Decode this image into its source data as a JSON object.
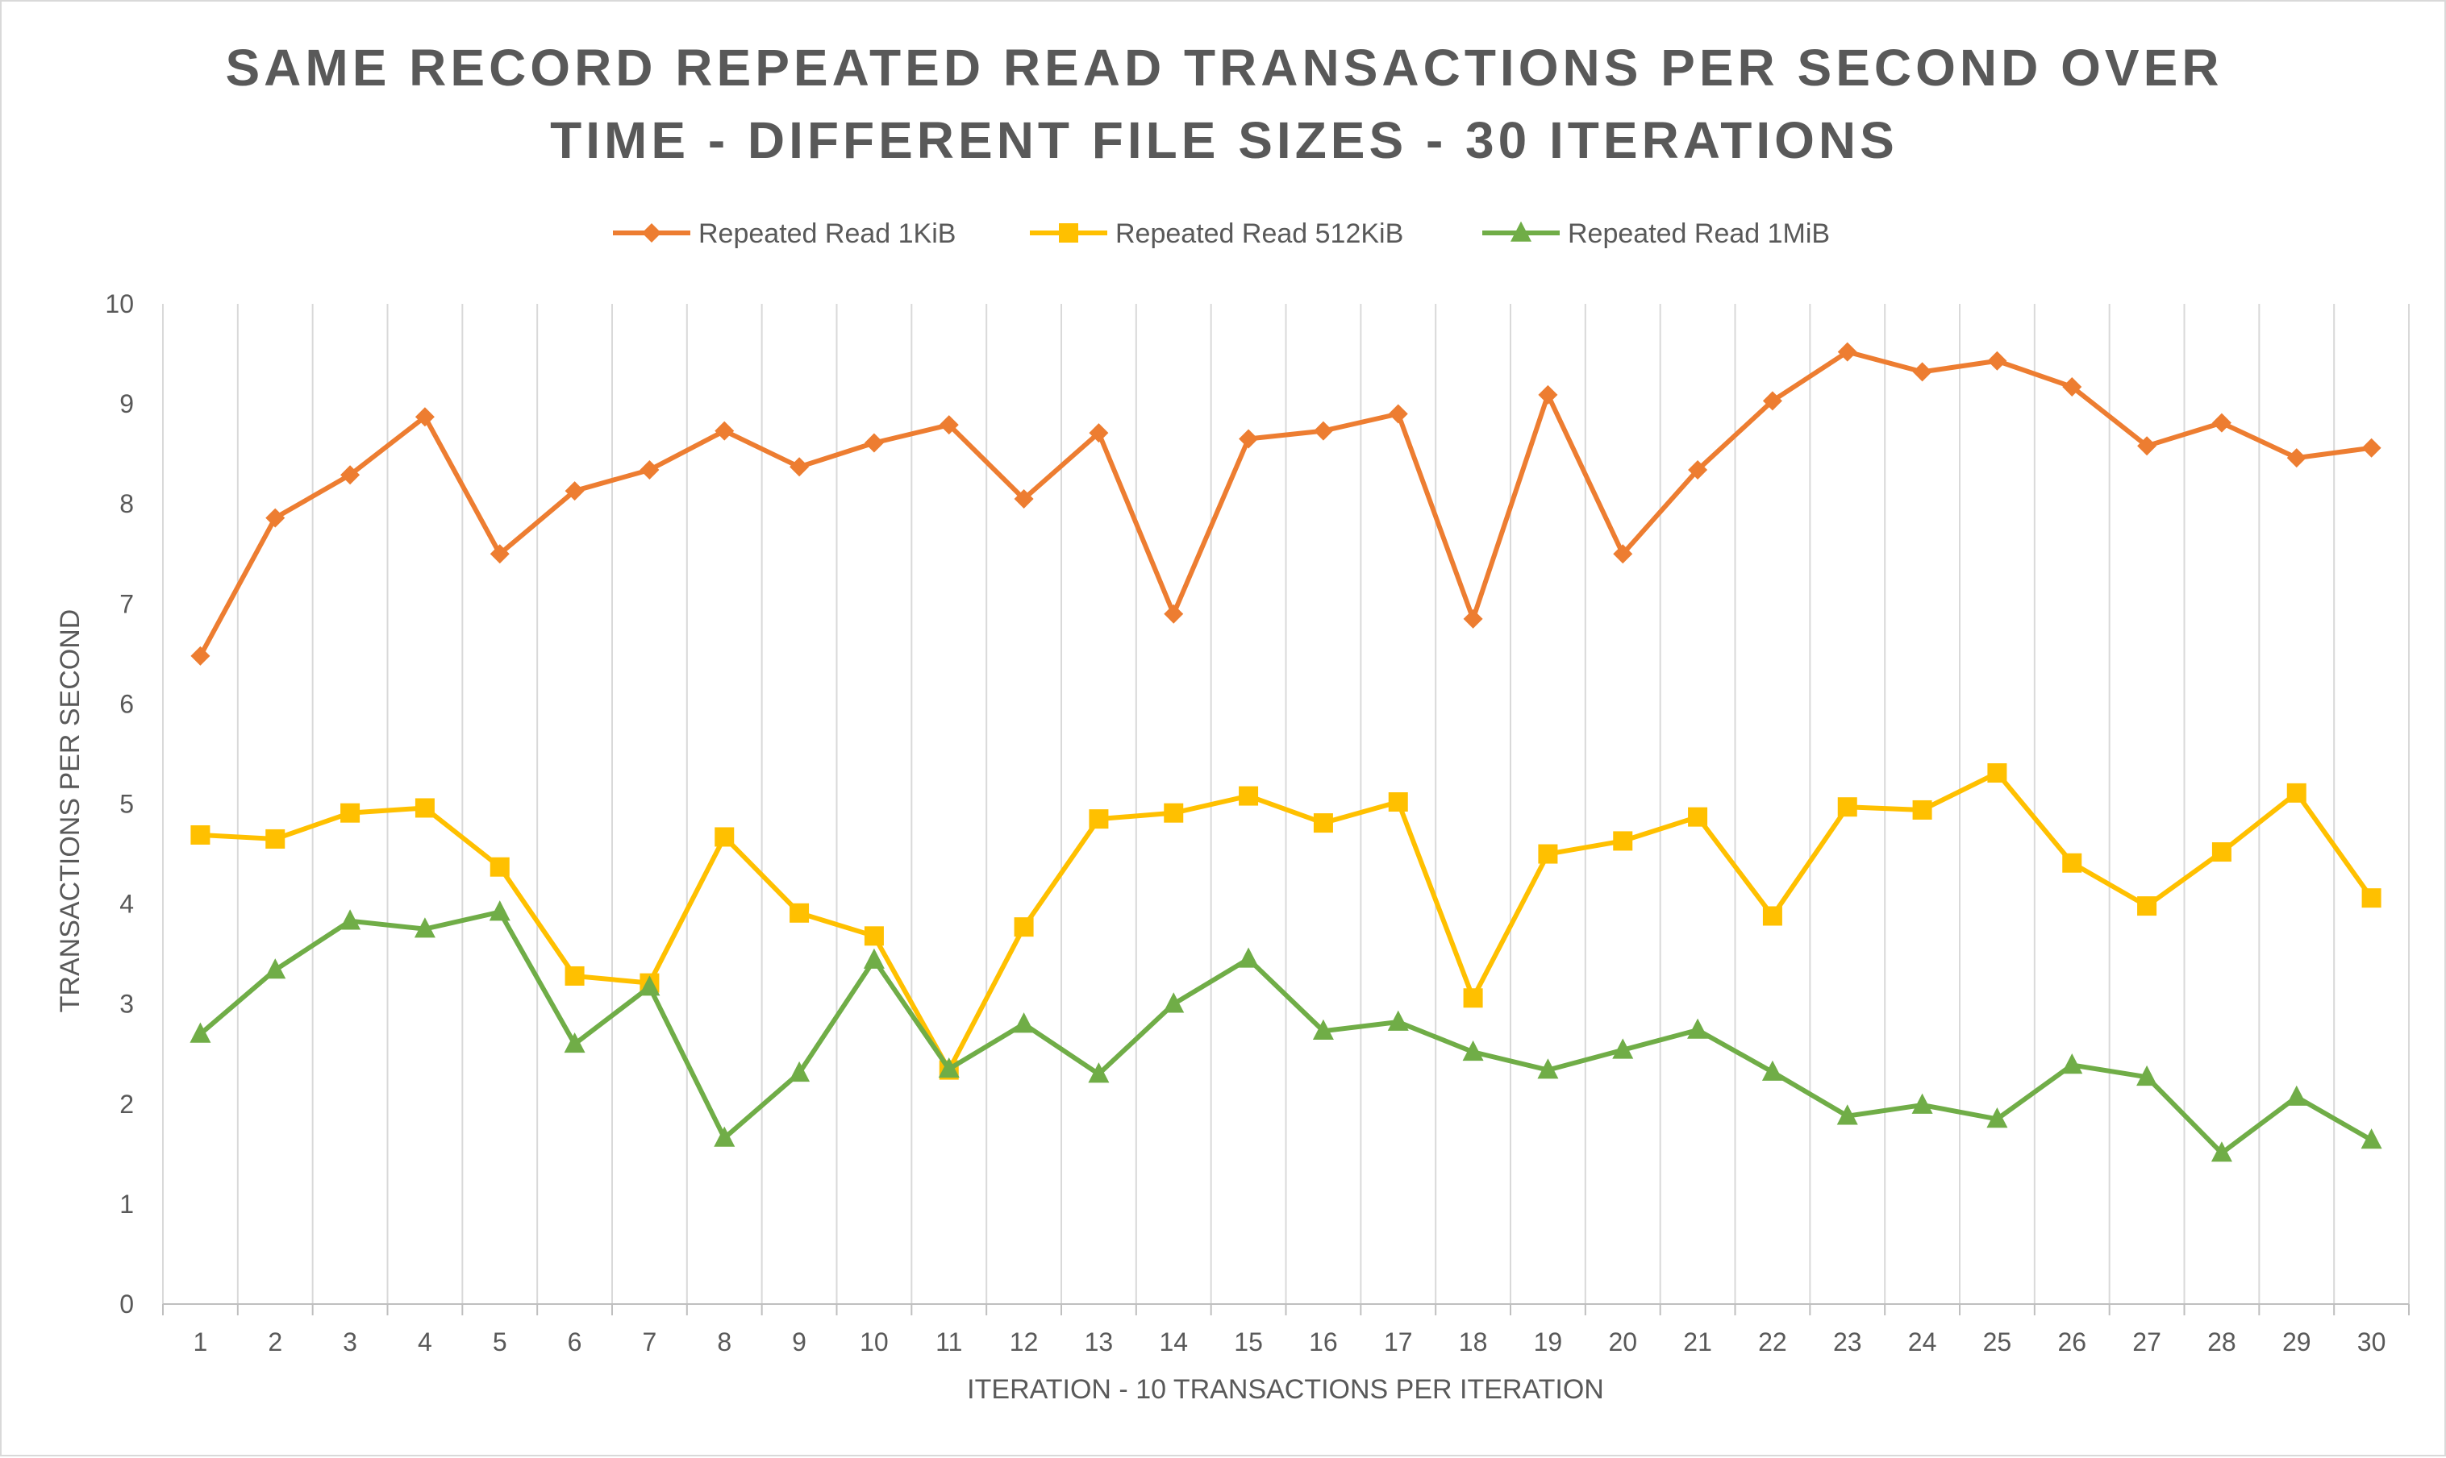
{
  "chart_data": {
    "type": "line",
    "title_lines": [
      "SAME RECORD REPEATED READ TRANSACTIONS PER SECOND OVER",
      "TIME - DIFFERENT FILE SIZES - 30 ITERATIONS"
    ],
    "xlabel": "ITERATION - 10 TRANSACTIONS PER ITERATION",
    "ylabel": "TRANSACTIONS PER SECOND",
    "ylim": [
      0,
      10
    ],
    "yticks": [
      0,
      1,
      2,
      3,
      4,
      5,
      6,
      7,
      8,
      9,
      10
    ],
    "categories": [
      "1",
      "2",
      "3",
      "4",
      "5",
      "6",
      "7",
      "8",
      "9",
      "10",
      "11",
      "12",
      "13",
      "14",
      "15",
      "16",
      "17",
      "18",
      "19",
      "20",
      "21",
      "22",
      "23",
      "24",
      "25",
      "26",
      "27",
      "28",
      "29",
      "30"
    ],
    "grid": "vertical",
    "legend_position": "top",
    "series": [
      {
        "name": "Repeated Read 1KiB",
        "color": "#ed7d31",
        "marker": "diamond",
        "values": [
          6.48,
          7.86,
          8.29,
          8.87,
          7.5,
          8.13,
          8.34,
          8.73,
          8.37,
          8.61,
          8.79,
          8.05,
          8.71,
          6.9,
          8.65,
          8.73,
          8.9,
          6.85,
          9.09,
          7.5,
          8.34,
          9.03,
          9.52,
          9.32,
          9.43,
          9.17,
          8.58,
          8.81,
          8.46,
          8.56
        ]
      },
      {
        "name": "Repeated Read 512KiB",
        "color": "#ffc000",
        "marker": "square",
        "values": [
          4.69,
          4.65,
          4.91,
          4.96,
          4.37,
          3.28,
          3.21,
          4.67,
          3.91,
          3.68,
          2.34,
          3.77,
          4.85,
          4.91,
          5.08,
          4.81,
          5.02,
          3.06,
          4.5,
          4.63,
          4.87,
          3.88,
          4.97,
          4.94,
          5.31,
          4.41,
          3.98,
          4.52,
          5.11,
          4.06
        ]
      },
      {
        "name": "Repeated Read 1MiB",
        "color": "#70ad47",
        "marker": "triangle",
        "values": [
          2.7,
          3.34,
          3.83,
          3.75,
          3.92,
          2.6,
          3.17,
          1.66,
          2.31,
          3.44,
          2.35,
          2.8,
          2.3,
          3.0,
          3.45,
          2.73,
          2.82,
          2.52,
          2.34,
          2.54,
          2.74,
          2.32,
          1.88,
          1.99,
          1.85,
          2.39,
          2.27,
          1.51,
          2.07,
          1.64
        ]
      }
    ]
  }
}
